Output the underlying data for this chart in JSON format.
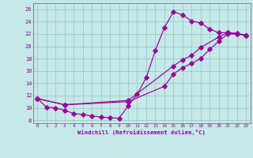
{
  "xlabel": "Windchill (Refroidissement éolien,°C)",
  "bg_color": "#c5e8e8",
  "grid_color": "#a0c8c8",
  "line_color": "#990099",
  "spine_color": "#7a7a7a",
  "xlim": [
    -0.5,
    23.5
  ],
  "ylim": [
    7.5,
    27.0
  ],
  "xticks": [
    0,
    1,
    2,
    3,
    4,
    5,
    6,
    7,
    8,
    9,
    10,
    11,
    12,
    13,
    14,
    15,
    16,
    17,
    18,
    19,
    20,
    21,
    22,
    23
  ],
  "yticks": [
    8,
    10,
    12,
    14,
    16,
    18,
    20,
    22,
    24,
    26
  ],
  "curve1_x": [
    0,
    1,
    2,
    3,
    4,
    5,
    6,
    7,
    8,
    9,
    10,
    11,
    12,
    13,
    14,
    15,
    16,
    17,
    18,
    19,
    20,
    21,
    22,
    23
  ],
  "curve1_y": [
    11.5,
    10.1,
    10.0,
    9.6,
    9.1,
    8.9,
    8.7,
    8.5,
    8.4,
    8.3,
    10.3,
    12.2,
    14.9,
    19.3,
    23.0,
    25.6,
    25.1,
    24.1,
    23.8,
    22.8,
    22.2,
    22.2,
    22.0,
    21.8
  ],
  "curve2_x": [
    0,
    3,
    10,
    14,
    15,
    16,
    17,
    18,
    19,
    20,
    21,
    22,
    23
  ],
  "curve2_y": [
    11.5,
    10.5,
    11.0,
    13.5,
    15.5,
    16.5,
    17.2,
    18.0,
    19.5,
    20.8,
    22.0,
    22.0,
    21.8
  ],
  "curve3_x": [
    0,
    3,
    10,
    15,
    16,
    17,
    18,
    20,
    21,
    22,
    23
  ],
  "curve3_y": [
    11.5,
    10.5,
    11.2,
    16.8,
    17.8,
    18.5,
    19.8,
    21.5,
    22.2,
    22.1,
    21.8
  ]
}
